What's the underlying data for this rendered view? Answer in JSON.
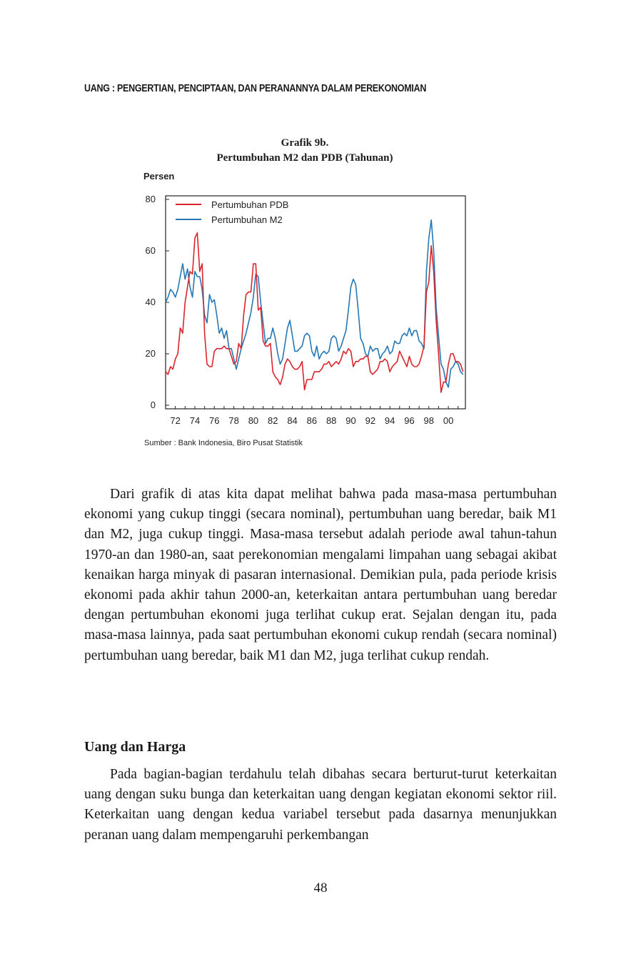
{
  "header": {
    "running_title": "UANG : PENGERTIAN, PENCIPTAAN, DAN PERANANNYA DALAM PEREKONOMIAN"
  },
  "figure": {
    "label": "Grafik 9b.",
    "title": "Pertumbuhan M2 dan PDB (Tahunan)",
    "source": "Sumber : Bank Indonesia, Biro Pusat Statistik"
  },
  "chart_data": {
    "type": "line",
    "ylabel": "Persen",
    "xlabel": "",
    "ylim": [
      0,
      80
    ],
    "xlim": [
      1971,
      2001.75
    ],
    "yticks": [
      0,
      20,
      40,
      60,
      80
    ],
    "xticks": [
      {
        "value": 1972,
        "label": "72"
      },
      {
        "value": 1974,
        "label": "74"
      },
      {
        "value": 1976,
        "label": "76"
      },
      {
        "value": 1978,
        "label": "78"
      },
      {
        "value": 1980,
        "label": "80"
      },
      {
        "value": 1982,
        "label": "82"
      },
      {
        "value": 1984,
        "label": "84"
      },
      {
        "value": 1986,
        "label": "86"
      },
      {
        "value": 1988,
        "label": "88"
      },
      {
        "value": 1990,
        "label": "90"
      },
      {
        "value": 1992,
        "label": "92"
      },
      {
        "value": 1994,
        "label": "94"
      },
      {
        "value": 1996,
        "label": "96"
      },
      {
        "value": 1998,
        "label": "98"
      },
      {
        "value": 2000,
        "label": "00"
      }
    ],
    "grid": false,
    "legend_position": "top-left",
    "series": [
      {
        "name": "Pertumbuhan PDB",
        "color": "#d9262c",
        "points": [
          [
            1971.0,
            13
          ],
          [
            1971.25,
            12
          ],
          [
            1971.5,
            15
          ],
          [
            1971.75,
            14
          ],
          [
            1972.0,
            18
          ],
          [
            1972.25,
            20
          ],
          [
            1972.5,
            30
          ],
          [
            1972.75,
            28
          ],
          [
            1973.0,
            40
          ],
          [
            1973.25,
            46
          ],
          [
            1973.5,
            52
          ],
          [
            1973.75,
            51
          ],
          [
            1974.0,
            65
          ],
          [
            1974.25,
            67
          ],
          [
            1974.5,
            52
          ],
          [
            1974.75,
            55
          ],
          [
            1975.0,
            28
          ],
          [
            1975.25,
            16
          ],
          [
            1975.5,
            15
          ],
          [
            1975.75,
            15
          ],
          [
            1976.0,
            21
          ],
          [
            1976.25,
            22
          ],
          [
            1976.5,
            22
          ],
          [
            1976.75,
            22
          ],
          [
            1977.0,
            23
          ],
          [
            1977.25,
            22
          ],
          [
            1977.5,
            22
          ],
          [
            1977.75,
            19
          ],
          [
            1978.0,
            16
          ],
          [
            1978.25,
            17
          ],
          [
            1978.5,
            24
          ],
          [
            1978.75,
            22
          ],
          [
            1979.0,
            35
          ],
          [
            1979.25,
            43
          ],
          [
            1979.5,
            44
          ],
          [
            1979.75,
            44
          ],
          [
            1980.0,
            55
          ],
          [
            1980.25,
            55
          ],
          [
            1980.5,
            37
          ],
          [
            1980.75,
            38
          ],
          [
            1981.0,
            25
          ],
          [
            1981.25,
            23
          ],
          [
            1981.5,
            23
          ],
          [
            1981.75,
            24
          ],
          [
            1982.0,
            13
          ],
          [
            1982.25,
            11
          ],
          [
            1982.5,
            10
          ],
          [
            1982.75,
            8
          ],
          [
            1983.0,
            11
          ],
          [
            1983.25,
            16
          ],
          [
            1983.5,
            18
          ],
          [
            1983.75,
            17
          ],
          [
            1984.0,
            15
          ],
          [
            1984.25,
            14
          ],
          [
            1984.5,
            14
          ],
          [
            1984.75,
            15
          ],
          [
            1985.0,
            17
          ],
          [
            1985.25,
            6
          ],
          [
            1985.5,
            10
          ],
          [
            1985.75,
            10
          ],
          [
            1986.0,
            10
          ],
          [
            1986.25,
            13
          ],
          [
            1986.5,
            13
          ],
          [
            1986.75,
            13
          ],
          [
            1987.0,
            14
          ],
          [
            1987.25,
            16
          ],
          [
            1987.5,
            16
          ],
          [
            1987.75,
            17
          ],
          [
            1988.0,
            15
          ],
          [
            1988.25,
            16
          ],
          [
            1988.5,
            17
          ],
          [
            1988.75,
            16
          ],
          [
            1989.0,
            18
          ],
          [
            1989.25,
            21
          ],
          [
            1989.5,
            20
          ],
          [
            1989.75,
            22
          ],
          [
            1990.0,
            21
          ],
          [
            1990.25,
            15
          ],
          [
            1990.5,
            17
          ],
          [
            1990.75,
            17
          ],
          [
            1991.0,
            18
          ],
          [
            1991.25,
            18
          ],
          [
            1991.5,
            19
          ],
          [
            1991.75,
            19
          ],
          [
            1992.0,
            13
          ],
          [
            1992.25,
            12
          ],
          [
            1992.5,
            13
          ],
          [
            1992.75,
            14
          ],
          [
            1993.0,
            17
          ],
          [
            1993.25,
            17
          ],
          [
            1993.5,
            18
          ],
          [
            1993.75,
            17
          ],
          [
            1994.0,
            13
          ],
          [
            1994.25,
            15
          ],
          [
            1994.5,
            16
          ],
          [
            1994.75,
            17
          ],
          [
            1995.0,
            21
          ],
          [
            1995.25,
            19
          ],
          [
            1995.5,
            17
          ],
          [
            1995.75,
            15
          ],
          [
            1996.0,
            19
          ],
          [
            1996.25,
            16
          ],
          [
            1996.5,
            15
          ],
          [
            1996.75,
            15
          ],
          [
            1997.0,
            16
          ],
          [
            1997.25,
            19
          ],
          [
            1997.5,
            23
          ],
          [
            1997.75,
            44
          ],
          [
            1998.0,
            48
          ],
          [
            1998.25,
            62
          ],
          [
            1998.5,
            52
          ],
          [
            1998.75,
            33
          ],
          [
            1999.0,
            20
          ],
          [
            1999.25,
            5
          ],
          [
            1999.5,
            9
          ],
          [
            1999.75,
            9
          ],
          [
            2000.0,
            16
          ],
          [
            2000.25,
            20
          ],
          [
            2000.5,
            20
          ],
          [
            2000.75,
            17
          ],
          [
            2001.0,
            17
          ],
          [
            2001.25,
            16
          ],
          [
            2001.5,
            13
          ]
        ]
      },
      {
        "name": "Pertumbuhan M2",
        "color": "#2578b5",
        "points": [
          [
            1971.0,
            40
          ],
          [
            1971.25,
            42
          ],
          [
            1971.5,
            45
          ],
          [
            1971.75,
            44
          ],
          [
            1972.0,
            42
          ],
          [
            1972.25,
            45
          ],
          [
            1972.5,
            50
          ],
          [
            1972.75,
            55
          ],
          [
            1973.0,
            49
          ],
          [
            1973.25,
            53
          ],
          [
            1973.5,
            46
          ],
          [
            1973.75,
            42
          ],
          [
            1974.0,
            52
          ],
          [
            1974.25,
            50
          ],
          [
            1974.5,
            50
          ],
          [
            1974.75,
            45
          ],
          [
            1975.0,
            35
          ],
          [
            1975.25,
            32
          ],
          [
            1975.5,
            43
          ],
          [
            1975.75,
            40
          ],
          [
            1976.0,
            41
          ],
          [
            1976.25,
            35
          ],
          [
            1976.5,
            28
          ],
          [
            1976.75,
            30
          ],
          [
            1977.0,
            26
          ],
          [
            1977.25,
            29
          ],
          [
            1977.5,
            22
          ],
          [
            1977.75,
            22
          ],
          [
            1978.0,
            18
          ],
          [
            1978.25,
            14
          ],
          [
            1978.5,
            18
          ],
          [
            1978.75,
            22
          ],
          [
            1979.0,
            25
          ],
          [
            1979.25,
            28
          ],
          [
            1979.5,
            32
          ],
          [
            1979.75,
            36
          ],
          [
            1980.0,
            42
          ],
          [
            1980.25,
            51
          ],
          [
            1980.5,
            50
          ],
          [
            1980.75,
            40
          ],
          [
            1981.0,
            32
          ],
          [
            1981.25,
            24
          ],
          [
            1981.5,
            26
          ],
          [
            1981.75,
            26
          ],
          [
            1982.0,
            30
          ],
          [
            1982.25,
            26
          ],
          [
            1982.5,
            20
          ],
          [
            1982.75,
            16
          ],
          [
            1983.0,
            18
          ],
          [
            1983.25,
            24
          ],
          [
            1983.5,
            30
          ],
          [
            1983.75,
            33
          ],
          [
            1984.0,
            27
          ],
          [
            1984.25,
            21
          ],
          [
            1984.5,
            21
          ],
          [
            1984.75,
            22
          ],
          [
            1985.0,
            23
          ],
          [
            1985.25,
            27
          ],
          [
            1985.5,
            28
          ],
          [
            1985.75,
            27
          ],
          [
            1986.0,
            21
          ],
          [
            1986.25,
            19
          ],
          [
            1986.5,
            23
          ],
          [
            1986.75,
            18
          ],
          [
            1987.0,
            20
          ],
          [
            1987.25,
            21
          ],
          [
            1987.5,
            20
          ],
          [
            1987.75,
            21
          ],
          [
            1988.0,
            26
          ],
          [
            1988.25,
            27
          ],
          [
            1988.5,
            26
          ],
          [
            1988.75,
            21
          ],
          [
            1989.0,
            23
          ],
          [
            1989.25,
            26
          ],
          [
            1989.5,
            29
          ],
          [
            1989.75,
            37
          ],
          [
            1990.0,
            46
          ],
          [
            1990.25,
            49
          ],
          [
            1990.5,
            47
          ],
          [
            1990.75,
            37
          ],
          [
            1991.0,
            26
          ],
          [
            1991.25,
            24
          ],
          [
            1991.5,
            20
          ],
          [
            1991.75,
            19
          ],
          [
            1992.0,
            23
          ],
          [
            1992.25,
            21
          ],
          [
            1992.5,
            22
          ],
          [
            1992.75,
            22
          ],
          [
            1993.0,
            18
          ],
          [
            1993.25,
            20
          ],
          [
            1993.5,
            21
          ],
          [
            1993.75,
            23
          ],
          [
            1994.0,
            20
          ],
          [
            1994.25,
            21
          ],
          [
            1994.5,
            25
          ],
          [
            1994.75,
            24
          ],
          [
            1995.0,
            24
          ],
          [
            1995.25,
            27
          ],
          [
            1995.5,
            28
          ],
          [
            1995.75,
            27
          ],
          [
            1996.0,
            30
          ],
          [
            1996.25,
            27
          ],
          [
            1996.5,
            29
          ],
          [
            1996.75,
            29
          ],
          [
            1997.0,
            25
          ],
          [
            1997.25,
            24
          ],
          [
            1997.5,
            22
          ],
          [
            1997.75,
            52
          ],
          [
            1998.0,
            65
          ],
          [
            1998.25,
            72
          ],
          [
            1998.5,
            60
          ],
          [
            1998.75,
            38
          ],
          [
            1999.0,
            27
          ],
          [
            1999.25,
            16
          ],
          [
            1999.5,
            14
          ],
          [
            1999.75,
            9
          ],
          [
            2000.0,
            7
          ],
          [
            2000.25,
            14
          ],
          [
            2000.5,
            15
          ],
          [
            2000.75,
            17
          ],
          [
            2001.0,
            16
          ],
          [
            2001.25,
            13
          ],
          [
            2001.5,
            12
          ]
        ]
      }
    ]
  },
  "body": {
    "paragraph1": "Dari grafik di atas kita dapat melihat bahwa pada masa-masa pertumbuhan ekonomi yang cukup tinggi (secara nominal), pertumbuhan uang beredar, baik M1 dan M2, juga cukup tinggi. Masa-masa tersebut adalah periode awal tahun-tahun 1970-an dan 1980-an, saat perekonomian mengalami limpahan uang sebagai akibat kenaikan harga minyak di pasaran internasional. Demikian pula, pada periode krisis ekonomi pada akhir tahun 2000-an, keterkaitan antara pertumbuhan uang beredar dengan pertumbuhan ekonomi juga terlihat cukup erat. Sejalan dengan itu, pada masa-masa lainnya, pada saat  pertumbuhan ekonomi cukup rendah (secara nominal) pertumbuhan uang beredar, baik M1 dan M2, juga terlihat cukup rendah.",
    "section_heading": "Uang dan Harga",
    "paragraph2": "Pada bagian-bagian terdahulu telah dibahas secara berturut-turut keterkaitan uang dengan suku bunga dan keterkaitan uang dengan kegiatan ekonomi sektor riil. Keterkaitan uang dengan kedua variabel tersebut pada dasarnya menunjukkan peranan uang dalam mempengaruhi perkembangan"
  },
  "page_number": "48"
}
